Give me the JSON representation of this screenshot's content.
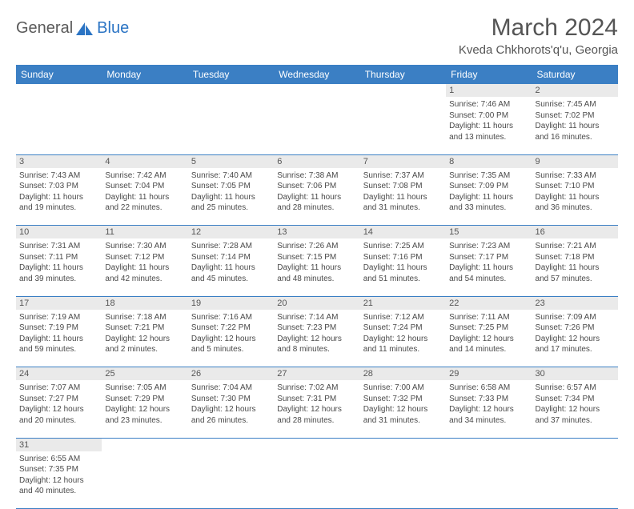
{
  "logo": {
    "text1": "General",
    "text2": "Blue"
  },
  "title": "March 2024",
  "location": "Kveda Chkhorots'q'u, Georgia",
  "colors": {
    "header_bg": "#3b7fc4",
    "header_text": "#ffffff",
    "logo_text": "#5a5a5a",
    "logo_blue": "#2b74c4",
    "daynum_bg": "#eaeaea",
    "cell_text": "#4a4a4a",
    "border": "#3b7fc4"
  },
  "day_labels": [
    "Sunday",
    "Monday",
    "Tuesday",
    "Wednesday",
    "Thursday",
    "Friday",
    "Saturday"
  ],
  "weeks": [
    [
      {
        "num": "",
        "lines": []
      },
      {
        "num": "",
        "lines": []
      },
      {
        "num": "",
        "lines": []
      },
      {
        "num": "",
        "lines": []
      },
      {
        "num": "",
        "lines": []
      },
      {
        "num": "1",
        "lines": [
          "Sunrise: 7:46 AM",
          "Sunset: 7:00 PM",
          "Daylight: 11 hours",
          "and 13 minutes."
        ]
      },
      {
        "num": "2",
        "lines": [
          "Sunrise: 7:45 AM",
          "Sunset: 7:02 PM",
          "Daylight: 11 hours",
          "and 16 minutes."
        ]
      }
    ],
    [
      {
        "num": "3",
        "lines": [
          "Sunrise: 7:43 AM",
          "Sunset: 7:03 PM",
          "Daylight: 11 hours",
          "and 19 minutes."
        ]
      },
      {
        "num": "4",
        "lines": [
          "Sunrise: 7:42 AM",
          "Sunset: 7:04 PM",
          "Daylight: 11 hours",
          "and 22 minutes."
        ]
      },
      {
        "num": "5",
        "lines": [
          "Sunrise: 7:40 AM",
          "Sunset: 7:05 PM",
          "Daylight: 11 hours",
          "and 25 minutes."
        ]
      },
      {
        "num": "6",
        "lines": [
          "Sunrise: 7:38 AM",
          "Sunset: 7:06 PM",
          "Daylight: 11 hours",
          "and 28 minutes."
        ]
      },
      {
        "num": "7",
        "lines": [
          "Sunrise: 7:37 AM",
          "Sunset: 7:08 PM",
          "Daylight: 11 hours",
          "and 31 minutes."
        ]
      },
      {
        "num": "8",
        "lines": [
          "Sunrise: 7:35 AM",
          "Sunset: 7:09 PM",
          "Daylight: 11 hours",
          "and 33 minutes."
        ]
      },
      {
        "num": "9",
        "lines": [
          "Sunrise: 7:33 AM",
          "Sunset: 7:10 PM",
          "Daylight: 11 hours",
          "and 36 minutes."
        ]
      }
    ],
    [
      {
        "num": "10",
        "lines": [
          "Sunrise: 7:31 AM",
          "Sunset: 7:11 PM",
          "Daylight: 11 hours",
          "and 39 minutes."
        ]
      },
      {
        "num": "11",
        "lines": [
          "Sunrise: 7:30 AM",
          "Sunset: 7:12 PM",
          "Daylight: 11 hours",
          "and 42 minutes."
        ]
      },
      {
        "num": "12",
        "lines": [
          "Sunrise: 7:28 AM",
          "Sunset: 7:14 PM",
          "Daylight: 11 hours",
          "and 45 minutes."
        ]
      },
      {
        "num": "13",
        "lines": [
          "Sunrise: 7:26 AM",
          "Sunset: 7:15 PM",
          "Daylight: 11 hours",
          "and 48 minutes."
        ]
      },
      {
        "num": "14",
        "lines": [
          "Sunrise: 7:25 AM",
          "Sunset: 7:16 PM",
          "Daylight: 11 hours",
          "and 51 minutes."
        ]
      },
      {
        "num": "15",
        "lines": [
          "Sunrise: 7:23 AM",
          "Sunset: 7:17 PM",
          "Daylight: 11 hours",
          "and 54 minutes."
        ]
      },
      {
        "num": "16",
        "lines": [
          "Sunrise: 7:21 AM",
          "Sunset: 7:18 PM",
          "Daylight: 11 hours",
          "and 57 minutes."
        ]
      }
    ],
    [
      {
        "num": "17",
        "lines": [
          "Sunrise: 7:19 AM",
          "Sunset: 7:19 PM",
          "Daylight: 11 hours",
          "and 59 minutes."
        ]
      },
      {
        "num": "18",
        "lines": [
          "Sunrise: 7:18 AM",
          "Sunset: 7:21 PM",
          "Daylight: 12 hours",
          "and 2 minutes."
        ]
      },
      {
        "num": "19",
        "lines": [
          "Sunrise: 7:16 AM",
          "Sunset: 7:22 PM",
          "Daylight: 12 hours",
          "and 5 minutes."
        ]
      },
      {
        "num": "20",
        "lines": [
          "Sunrise: 7:14 AM",
          "Sunset: 7:23 PM",
          "Daylight: 12 hours",
          "and 8 minutes."
        ]
      },
      {
        "num": "21",
        "lines": [
          "Sunrise: 7:12 AM",
          "Sunset: 7:24 PM",
          "Daylight: 12 hours",
          "and 11 minutes."
        ]
      },
      {
        "num": "22",
        "lines": [
          "Sunrise: 7:11 AM",
          "Sunset: 7:25 PM",
          "Daylight: 12 hours",
          "and 14 minutes."
        ]
      },
      {
        "num": "23",
        "lines": [
          "Sunrise: 7:09 AM",
          "Sunset: 7:26 PM",
          "Daylight: 12 hours",
          "and 17 minutes."
        ]
      }
    ],
    [
      {
        "num": "24",
        "lines": [
          "Sunrise: 7:07 AM",
          "Sunset: 7:27 PM",
          "Daylight: 12 hours",
          "and 20 minutes."
        ]
      },
      {
        "num": "25",
        "lines": [
          "Sunrise: 7:05 AM",
          "Sunset: 7:29 PM",
          "Daylight: 12 hours",
          "and 23 minutes."
        ]
      },
      {
        "num": "26",
        "lines": [
          "Sunrise: 7:04 AM",
          "Sunset: 7:30 PM",
          "Daylight: 12 hours",
          "and 26 minutes."
        ]
      },
      {
        "num": "27",
        "lines": [
          "Sunrise: 7:02 AM",
          "Sunset: 7:31 PM",
          "Daylight: 12 hours",
          "and 28 minutes."
        ]
      },
      {
        "num": "28",
        "lines": [
          "Sunrise: 7:00 AM",
          "Sunset: 7:32 PM",
          "Daylight: 12 hours",
          "and 31 minutes."
        ]
      },
      {
        "num": "29",
        "lines": [
          "Sunrise: 6:58 AM",
          "Sunset: 7:33 PM",
          "Daylight: 12 hours",
          "and 34 minutes."
        ]
      },
      {
        "num": "30",
        "lines": [
          "Sunrise: 6:57 AM",
          "Sunset: 7:34 PM",
          "Daylight: 12 hours",
          "and 37 minutes."
        ]
      }
    ],
    [
      {
        "num": "31",
        "lines": [
          "Sunrise: 6:55 AM",
          "Sunset: 7:35 PM",
          "Daylight: 12 hours",
          "and 40 minutes."
        ]
      },
      {
        "num": "",
        "lines": []
      },
      {
        "num": "",
        "lines": []
      },
      {
        "num": "",
        "lines": []
      },
      {
        "num": "",
        "lines": []
      },
      {
        "num": "",
        "lines": []
      },
      {
        "num": "",
        "lines": []
      }
    ]
  ]
}
